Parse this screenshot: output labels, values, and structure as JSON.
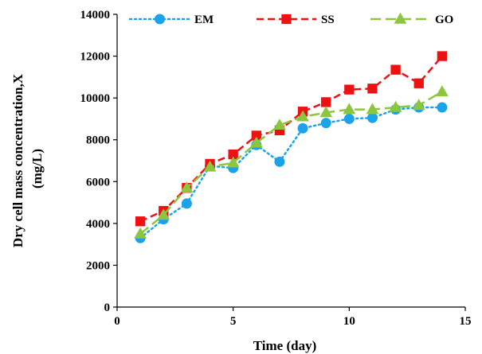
{
  "chart_data": {
    "type": "line",
    "xlabel": "Time (day)",
    "ylabel_line1": "Dry cell mass concentration,X",
    "ylabel_line2": "(mg/L)",
    "xlim": [
      0,
      15
    ],
    "ylim": [
      0,
      14000
    ],
    "xticks": [
      0,
      5,
      10,
      15
    ],
    "yticks": [
      0,
      2000,
      4000,
      6000,
      8000,
      10000,
      12000,
      14000
    ],
    "grid": false,
    "legend_position": "top",
    "series": [
      {
        "name": "EM",
        "color": "#1aa3e8",
        "line_style": "dotted",
        "marker": "circle",
        "x": [
          1,
          2,
          3,
          4,
          5,
          6,
          7,
          8,
          9,
          10,
          11,
          12,
          13,
          14
        ],
        "y": [
          3300,
          4200,
          4950,
          6750,
          6650,
          7750,
          6950,
          8550,
          8800,
          9000,
          9050,
          9450,
          9550,
          9550
        ]
      },
      {
        "name": "SS",
        "color": "#ee1111",
        "line_style": "dashed",
        "marker": "square",
        "x": [
          1,
          2,
          3,
          4,
          5,
          6,
          7,
          8,
          9,
          10,
          11,
          12,
          13,
          14
        ],
        "y": [
          4100,
          4600,
          5700,
          6850,
          7300,
          8200,
          8450,
          9350,
          9800,
          10400,
          10450,
          11350,
          10700,
          12000
        ]
      },
      {
        "name": "GO",
        "color": "#8cc63f",
        "line_style": "longdash",
        "marker": "triangle",
        "x": [
          1,
          2,
          3,
          4,
          5,
          6,
          7,
          8,
          9,
          10,
          11,
          12,
          13,
          14
        ],
        "y": [
          3500,
          4400,
          5700,
          6700,
          6900,
          7850,
          8700,
          9100,
          9300,
          9450,
          9450,
          9550,
          9650,
          10300
        ]
      }
    ]
  }
}
